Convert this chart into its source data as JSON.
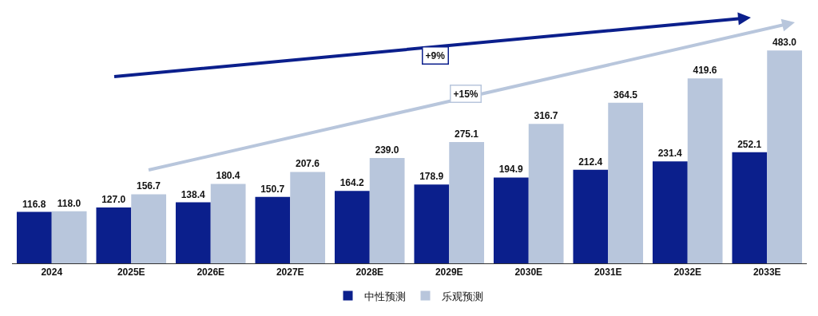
{
  "chart_data": {
    "type": "bar",
    "categories": [
      "2024",
      "2025E",
      "2026E",
      "2027E",
      "2028E",
      "2029E",
      "2030E",
      "2031E",
      "2032E",
      "2033E"
    ],
    "series": [
      {
        "name": "中性预测",
        "color": "#0b1f8c",
        "values": [
          116.8,
          127.0,
          138.4,
          150.7,
          164.2,
          178.9,
          194.9,
          212.4,
          231.4,
          252.1
        ],
        "value_labels": [
          "116.8",
          "127.0",
          "138.4",
          "150.7",
          "164.2",
          "178.9",
          "194.9",
          "212.4",
          "231.4",
          "252.1"
        ]
      },
      {
        "name": "乐观预测",
        "color": "#b8c6dc",
        "values": [
          118.0,
          156.7,
          180.4,
          207.6,
          239.0,
          275.1,
          316.7,
          364.5,
          419.6,
          483.0
        ],
        "value_labels": [
          "118.0",
          "156.7",
          "180.4",
          "207.6",
          "239.0",
          "275.1",
          "316.7",
          "364.5",
          "419.6",
          "483.0"
        ]
      }
    ],
    "annotations": [
      "+9%",
      "+15%"
    ],
    "legend": "bottom",
    "grid": false
  }
}
